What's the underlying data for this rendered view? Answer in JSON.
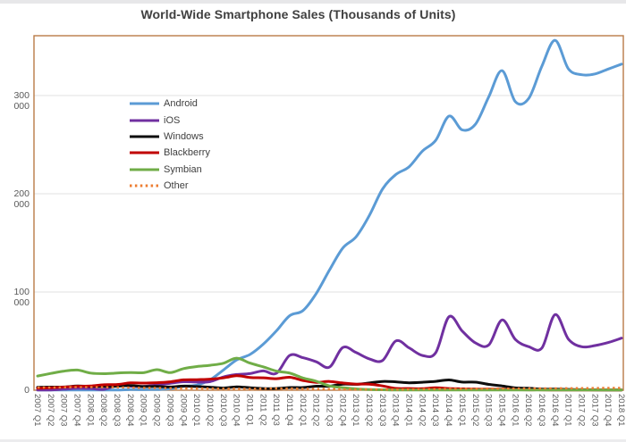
{
  "chart_data": {
    "type": "line",
    "title": "World-Wide Smartphone Sales (Thousands of Units)",
    "xlabel": "",
    "ylabel": "",
    "ylim": [
      0,
      361000
    ],
    "y_ticks": [
      0,
      100000,
      200000,
      300000
    ],
    "y_tick_labels": [
      "0",
      "100 000",
      "200 000",
      "300 000"
    ],
    "grid": "horizontal",
    "legend_position": "inside-top-left",
    "smooth_lines": true,
    "colors": {
      "plot_border": "#b97a46",
      "gridline": "#e2e2e2",
      "tick_label": "#595959",
      "title": "#404040",
      "legend_label": "#404040",
      "background": "#ffffff"
    },
    "categories": [
      "2007 Q1",
      "2007 Q2",
      "2007 Q3",
      "2007 Q4",
      "2008 Q1",
      "2008 Q2",
      "2008 Q3",
      "2008 Q4",
      "2009 Q1",
      "2009 Q2",
      "2009 Q3",
      "2009 Q4",
      "2010 Q1",
      "2010 Q2",
      "2010 Q3",
      "2010 Q4",
      "2011 Q1",
      "2011 Q2",
      "2011 Q3",
      "2011 Q4",
      "2012 Q1",
      "2012 Q2",
      "2012 Q3",
      "2012 Q4",
      "2013 Q1",
      "2013 Q2",
      "2013 Q3",
      "2013 Q4",
      "2014 Q1",
      "2014 Q2",
      "2014 Q3",
      "2014 Q4",
      "2015 Q1",
      "2015 Q2",
      "2015 Q3",
      "2015 Q4",
      "2016 Q1",
      "2016 Q2",
      "2016 Q3",
      "2016 Q4",
      "2017 Q1",
      "2017 Q2",
      "2017 Q3",
      "2017 Q4",
      "2018 Q1"
    ],
    "series": [
      {
        "name": "Android",
        "color": "#5b9bd5",
        "style": "solid",
        "values": [
          0,
          0,
          0,
          0,
          0,
          0,
          0,
          640,
          575,
          755,
          1425,
          4045,
          5225,
          10650,
          20545,
          30800,
          36350,
          46775,
          60490,
          75905,
          81065,
          98530,
          122480,
          144720,
          156185,
          177900,
          205025,
          219615,
          227550,
          243485,
          254355,
          279060,
          265010,
          271010,
          298795,
          325390,
          293770,
          296910,
          330000,
          356215,
          327160,
          321190,
          322000,
          327000,
          332000
        ]
      },
      {
        "name": "iOS",
        "color": "#7030a0",
        "style": "solid",
        "values": [
          0,
          270,
          1100,
          1930,
          1725,
          890,
          4720,
          4080,
          3850,
          5325,
          7040,
          8675,
          8270,
          8745,
          13485,
          16010,
          16885,
          19630,
          17295,
          35455,
          33120,
          28935,
          23550,
          43455,
          38330,
          31900,
          30330,
          50225,
          43060,
          35345,
          38185,
          74830,
          60175,
          48085,
          46060,
          71525,
          51630,
          44395,
          43000,
          77040,
          51990,
          44315,
          45440,
          48500,
          53000
        ]
      },
      {
        "name": "Windows",
        "color": "#0d0d0d",
        "style": "solid",
        "values": [
          2930,
          3210,
          3300,
          4375,
          3900,
          3875,
          4055,
          4715,
          3740,
          3830,
          3260,
          4205,
          3695,
          3060,
          2205,
          3420,
          2580,
          1725,
          1700,
          2760,
          2715,
          4085,
          4060,
          6185,
          5990,
          7405,
          8910,
          8535,
          7580,
          8095,
          9035,
          10425,
          8270,
          8200,
          5875,
          4395,
          2400,
          1970,
          1090,
          1090,
          800,
          500,
          400,
          300,
          250
        ]
      },
      {
        "name": "Blackberry",
        "color": "#c00000",
        "style": "solid",
        "values": [
          2080,
          2470,
          3190,
          4025,
          4310,
          5590,
          5800,
          7440,
          7235,
          7680,
          8520,
          10510,
          10750,
          11230,
          12510,
          14760,
          13005,
          12650,
          11770,
          13185,
          9940,
          7990,
          8950,
          7330,
          6220,
          6180,
          4400,
          1810,
          1715,
          1525,
          2420,
          1730,
          1325,
          1150,
          980,
          910,
          660,
          400,
          380,
          210,
          100,
          50,
          0,
          0,
          0
        ]
      },
      {
        "name": "Symbian",
        "color": "#70ad47",
        "style": "solid",
        "values": [
          14480,
          17050,
          19500,
          20500,
          17450,
          16800,
          17500,
          17950,
          17825,
          20880,
          17900,
          22000,
          24070,
          25390,
          27500,
          32640,
          27600,
          23850,
          19500,
          17460,
          12470,
          9070,
          4405,
          2570,
          1350,
          630,
          460,
          140,
          0,
          0,
          0,
          0,
          0,
          0,
          0,
          0,
          0,
          0,
          0,
          0,
          0,
          0,
          0,
          0,
          0
        ]
      },
      {
        "name": "Other",
        "color": "#ed7d31",
        "style": "dotted",
        "values": [
          2700,
          2800,
          3000,
          3100,
          3200,
          3000,
          2900,
          2600,
          2300,
          2200,
          2000,
          1900,
          1800,
          1700,
          1600,
          1500,
          1500,
          1600,
          1800,
          1700,
          1500,
          1300,
          1200,
          1000,
          900,
          800,
          700,
          600,
          800,
          1000,
          1200,
          1400,
          1400,
          1500,
          1600,
          1600,
          1700,
          1800,
          1800,
          1900,
          2000,
          2100,
          2200,
          2300,
          2400
        ]
      }
    ]
  }
}
